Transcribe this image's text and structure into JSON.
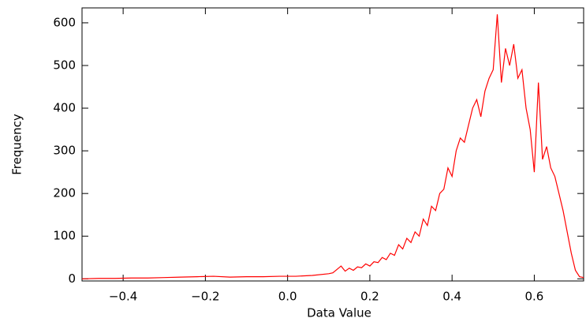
{
  "chart_data": {
    "type": "line",
    "x_label": "Data Value",
    "y_label": "Frequency",
    "x": [
      -0.5,
      -0.46,
      -0.42,
      -0.38,
      -0.34,
      -0.3,
      -0.26,
      -0.22,
      -0.18,
      -0.14,
      -0.1,
      -0.06,
      -0.02,
      0.02,
      0.06,
      0.1,
      0.11,
      0.12,
      0.13,
      0.14,
      0.15,
      0.16,
      0.17,
      0.18,
      0.19,
      0.2,
      0.21,
      0.22,
      0.23,
      0.24,
      0.25,
      0.26,
      0.27,
      0.28,
      0.29,
      0.3,
      0.31,
      0.32,
      0.33,
      0.34,
      0.35,
      0.36,
      0.37,
      0.38,
      0.39,
      0.4,
      0.41,
      0.42,
      0.43,
      0.44,
      0.45,
      0.46,
      0.47,
      0.48,
      0.49,
      0.5,
      0.51,
      0.52,
      0.53,
      0.54,
      0.55,
      0.56,
      0.57,
      0.58,
      0.59,
      0.6,
      0.61,
      0.62,
      0.63,
      0.64,
      0.65,
      0.66,
      0.67,
      0.68,
      0.69,
      0.7,
      0.71,
      0.72
    ],
    "series": [
      {
        "color": "#ff0000",
        "values": [
          0,
          1,
          1,
          2,
          2,
          3,
          4,
          5,
          6,
          4,
          5,
          5,
          6,
          6,
          8,
          12,
          14,
          22,
          30,
          18,
          25,
          20,
          28,
          26,
          35,
          30,
          40,
          38,
          50,
          45,
          60,
          55,
          80,
          70,
          95,
          85,
          110,
          100,
          140,
          125,
          170,
          160,
          200,
          210,
          260,
          240,
          300,
          330,
          320,
          360,
          400,
          420,
          380,
          440,
          470,
          490,
          620,
          460,
          540,
          500,
          550,
          470,
          490,
          400,
          350,
          250,
          460,
          280,
          310,
          260,
          240,
          200,
          160,
          110,
          60,
          20,
          5,
          3
        ]
      }
    ],
    "xlim": [
      -0.5,
      0.72
    ],
    "ylim": [
      -5,
      635
    ],
    "xticks": [
      {
        "value": -0.4,
        "label": "−0.4"
      },
      {
        "value": -0.2,
        "label": "−0.2"
      },
      {
        "value": 0,
        "label": "0.0"
      },
      0.2,
      0.4,
      0.6
    ],
    "yticks": [
      0,
      100,
      200,
      300,
      400,
      500,
      600
    ]
  }
}
